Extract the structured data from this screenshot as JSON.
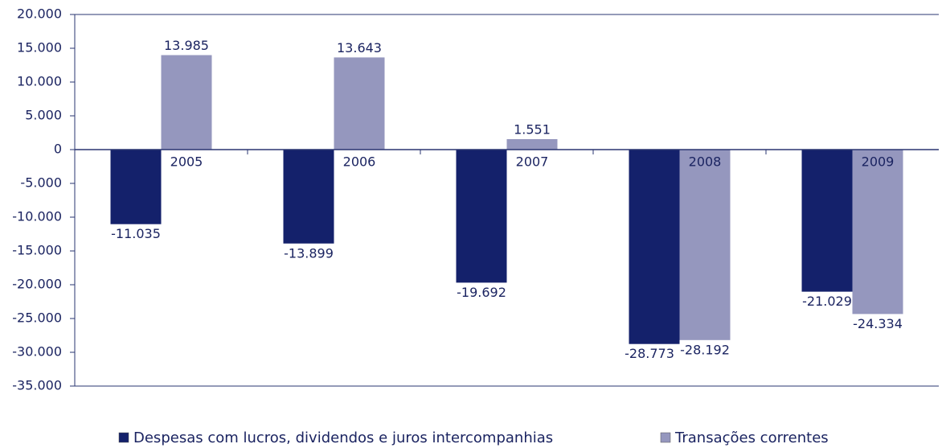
{
  "chart_data": {
    "type": "bar",
    "categories": [
      "2005",
      "2006",
      "2007",
      "2008",
      "2009"
    ],
    "series": [
      {
        "name": "Despesas com lucros, dividendos e juros intercompanhias",
        "color": "#14216b",
        "values": [
          -11035,
          -13899,
          -19692,
          -28773,
          -21029
        ],
        "value_labels": [
          "-11.035",
          "-13.899",
          "-19.692",
          "-28.773",
          "-21.029"
        ]
      },
      {
        "name": "Transações correntes",
        "color": "#9597be",
        "values": [
          13985,
          13643,
          1551,
          -28192,
          -24334
        ],
        "value_labels": [
          "13.985",
          "13.643",
          "1.551",
          "-28.192",
          "-24.334"
        ]
      }
    ],
    "ylim": [
      -35000,
      20000
    ],
    "yticks": [
      {
        "value": 20000,
        "label": "20.000"
      },
      {
        "value": 15000,
        "label": "15.000"
      },
      {
        "value": 10000,
        "label": "10.000"
      },
      {
        "value": 5000,
        "label": "5.000"
      },
      0,
      {
        "value": -5000,
        "label": "-5.000"
      },
      {
        "value": -10000,
        "label": "-10.000"
      },
      {
        "value": -15000,
        "label": "-15.000"
      },
      {
        "value": -20000,
        "label": "-20.000"
      },
      {
        "value": -25000,
        "label": "-25.000"
      },
      {
        "value": -30000,
        "label": "-30.000"
      },
      {
        "value": -35000,
        "label": "-35.000"
      }
    ],
    "grid": false,
    "legend": "bottom"
  }
}
